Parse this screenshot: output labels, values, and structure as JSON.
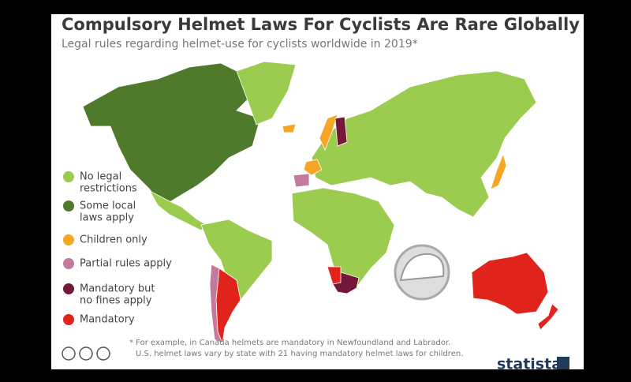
{
  "header": {
    "title": "Compulsory Helmet Laws For Cyclists Are Rare Globally",
    "subtitle": "Legal rules regarding helmet-use for cyclists worldwide in 2019*"
  },
  "legend": [
    {
      "label": [
        "No legal",
        "restrictions"
      ],
      "color": "#9bcb4f"
    },
    {
      "label": [
        "Some local",
        "laws apply"
      ],
      "color": "#4f7a2b"
    },
    {
      "label": [
        "Children only"
      ],
      "color": "#f6a623"
    },
    {
      "label": [
        "Partial rules apply"
      ],
      "color": "#c47a9b"
    },
    {
      "label": [
        "Mandatory but",
        "no fines apply"
      ],
      "color": "#74183a"
    },
    {
      "label": [
        "Mandatory"
      ],
      "color": "#e1241b"
    }
  ],
  "footnote": [
    "* For example, in Canada helmets are mandatory in Newfoundland and Labrador.",
    "U.S. helmet laws vary by state with 21 having mandatory helmet laws for children."
  ],
  "brand": "statista"
}
